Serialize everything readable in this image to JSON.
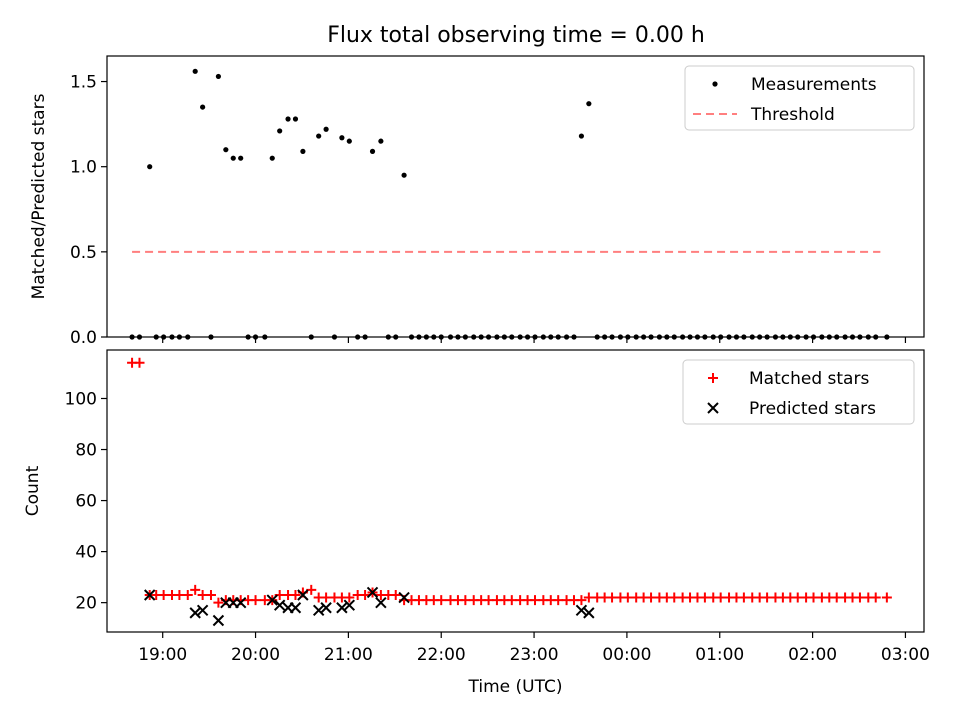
{
  "title": "Flux total observing time = 0.00 h",
  "chart_data": [
    {
      "type": "scatter",
      "ylabel": "Matched/Predicted stars",
      "ylim": [
        0,
        1.65
      ],
      "yticks": [
        "0.0",
        "0.5",
        "1.0",
        "1.5"
      ],
      "ytick_values": [
        0,
        0.5,
        1.0,
        1.5
      ],
      "xlim": [
        18.4,
        27.2
      ],
      "xtick_values": [
        19,
        20,
        21,
        22,
        23,
        24,
        25,
        26,
        27
      ],
      "legend_position": "top-right",
      "series": [
        {
          "name": "Measurements",
          "style": "dot",
          "color": "#000000",
          "x": [
            18.67,
            18.75,
            18.86,
            18.93,
            19.01,
            19.1,
            19.18,
            19.27,
            19.35,
            19.43,
            19.52,
            19.6,
            19.68,
            19.76,
            19.84,
            19.92,
            20.0,
            20.1,
            20.18,
            20.26,
            20.35,
            20.43,
            20.51,
            20.6,
            20.68,
            20.76,
            20.85,
            20.93,
            21.01,
            21.1,
            21.18,
            21.26,
            21.35,
            21.43,
            21.51,
            21.6,
            21.68,
            21.76,
            21.84,
            21.92,
            22.0,
            22.1,
            22.18,
            22.26,
            22.35,
            22.43,
            22.51,
            22.6,
            22.68,
            22.76,
            22.85,
            22.93,
            23.01,
            23.1,
            23.18,
            23.26,
            23.35,
            23.43,
            23.51,
            23.59,
            23.68,
            23.76,
            23.84,
            23.93,
            24.01,
            24.1,
            24.18,
            24.26,
            24.35,
            24.43,
            24.51,
            24.6,
            24.68,
            24.76,
            24.84,
            24.93,
            25.01,
            25.1,
            25.18,
            25.26,
            25.35,
            25.43,
            25.51,
            25.6,
            25.68,
            25.76,
            25.84,
            25.93,
            26.01,
            26.1,
            26.18,
            26.26,
            26.35,
            26.43,
            26.51,
            26.6,
            26.68,
            26.8
          ],
          "y": [
            0,
            0,
            1.0,
            0,
            0,
            0,
            0,
            0,
            1.56,
            1.35,
            0,
            1.53,
            1.1,
            1.05,
            1.05,
            0,
            0,
            0,
            1.05,
            1.21,
            1.28,
            1.28,
            1.09,
            0,
            1.18,
            1.22,
            0,
            1.17,
            1.15,
            0,
            0,
            1.09,
            1.15,
            0,
            0,
            0.95,
            0,
            0,
            0,
            0,
            0,
            0,
            0,
            0,
            0,
            0,
            0,
            0,
            0,
            0,
            0,
            0,
            0,
            0,
            0,
            0,
            0,
            0,
            1.18,
            1.37,
            0,
            0,
            0,
            0,
            0,
            0,
            0,
            0,
            0,
            0,
            0,
            0,
            0,
            0,
            0,
            0,
            0,
            0,
            0,
            0,
            0,
            0,
            0,
            0,
            0,
            0,
            0,
            0,
            0,
            0,
            0,
            0,
            0,
            0,
            0,
            0,
            0,
            0
          ]
        },
        {
          "name": "Threshold",
          "style": "dashed-line",
          "color": "#ff7f7f",
          "x": [
            18.67,
            26.73
          ],
          "y": [
            0.5,
            0.5
          ]
        }
      ]
    },
    {
      "type": "scatter",
      "xlabel": "Time (UTC)",
      "ylabel": "Count",
      "ylim": [
        8.5,
        119
      ],
      "yticks": [
        "20",
        "40",
        "60",
        "80",
        "100"
      ],
      "ytick_values": [
        20,
        40,
        60,
        80,
        100
      ],
      "xlim": [
        18.4,
        27.2
      ],
      "xtick_values": [
        19,
        20,
        21,
        22,
        23,
        24,
        25,
        26,
        27
      ],
      "xticks": [
        "19:00",
        "20:00",
        "21:00",
        "22:00",
        "23:00",
        "00:00",
        "01:00",
        "02:00",
        "03:00"
      ],
      "legend_position": "top-right",
      "series": [
        {
          "name": "Matched stars",
          "style": "plus",
          "color": "#ff0000",
          "x": [
            18.67,
            18.75,
            18.86,
            18.93,
            19.01,
            19.1,
            19.18,
            19.27,
            19.35,
            19.43,
            19.52,
            19.6,
            19.68,
            19.76,
            19.84,
            19.92,
            20.0,
            20.1,
            20.18,
            20.26,
            20.35,
            20.43,
            20.51,
            20.6,
            20.68,
            20.76,
            20.85,
            20.93,
            21.01,
            21.1,
            21.18,
            21.26,
            21.35,
            21.43,
            21.51,
            21.6,
            21.68,
            21.76,
            21.84,
            21.92,
            22.0,
            22.1,
            22.18,
            22.26,
            22.35,
            22.43,
            22.51,
            22.6,
            22.68,
            22.76,
            22.85,
            22.93,
            23.01,
            23.1,
            23.18,
            23.26,
            23.35,
            23.43,
            23.51,
            23.59,
            23.68,
            23.76,
            23.84,
            23.93,
            24.01,
            24.1,
            24.18,
            24.26,
            24.35,
            24.43,
            24.51,
            24.6,
            24.68,
            24.76,
            24.84,
            24.93,
            25.01,
            25.1,
            25.18,
            25.26,
            25.35,
            25.43,
            25.51,
            25.6,
            25.68,
            25.76,
            25.84,
            25.93,
            26.01,
            26.1,
            26.18,
            26.26,
            26.35,
            26.43,
            26.51,
            26.6,
            26.68,
            26.8
          ],
          "y": [
            114,
            114,
            23,
            23,
            23,
            23,
            23,
            23,
            25,
            23,
            23,
            20,
            21,
            21,
            21,
            21,
            21,
            21,
            21,
            23,
            23,
            23,
            24,
            25,
            22,
            22,
            22,
            22,
            22,
            23,
            23,
            24,
            23,
            23,
            23,
            21,
            21,
            21,
            21,
            21,
            21,
            21,
            21,
            21,
            21,
            21,
            21,
            21,
            21,
            21,
            21,
            21,
            21,
            21,
            21,
            21,
            21,
            21,
            21,
            22,
            22,
            22,
            22,
            22,
            22,
            22,
            22,
            22,
            22,
            22,
            22,
            22,
            22,
            22,
            22,
            22,
            22,
            22,
            22,
            22,
            22,
            22,
            22,
            22,
            22,
            22,
            22,
            22,
            22,
            22,
            22,
            22,
            22,
            22,
            22,
            22,
            22,
            22
          ]
        },
        {
          "name": "Predicted stars",
          "style": "cross",
          "color": "#000000",
          "x": [
            18.86,
            19.35,
            19.43,
            19.6,
            19.68,
            19.76,
            19.84,
            20.18,
            20.26,
            20.35,
            20.43,
            20.51,
            20.68,
            20.76,
            20.93,
            21.01,
            21.26,
            21.35,
            21.6,
            23.51,
            23.59
          ],
          "y": [
            23,
            16,
            17,
            13,
            20,
            20,
            20,
            21,
            19,
            18,
            18,
            23,
            17,
            18,
            18,
            19,
            24,
            20,
            22,
            17,
            16
          ]
        }
      ]
    }
  ]
}
